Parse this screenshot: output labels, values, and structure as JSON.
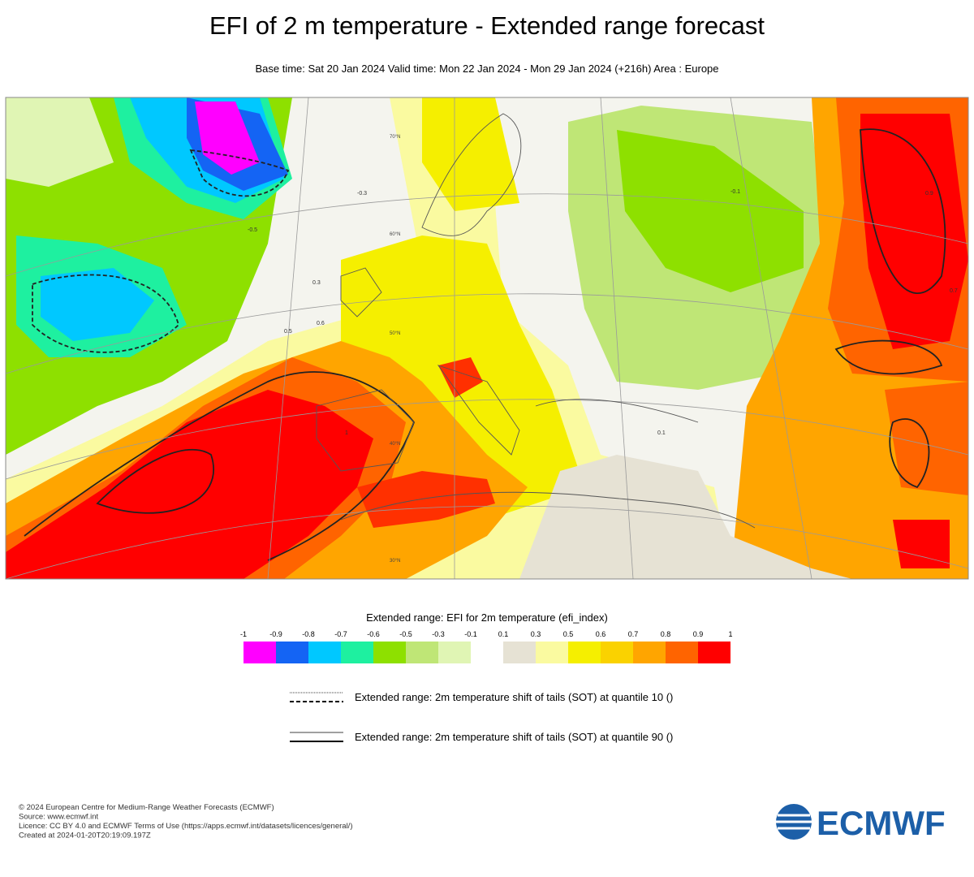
{
  "header": {
    "title": "EFI of 2 m temperature - Extended range forecast",
    "subtitle": "Base time: Sat 20 Jan 2024 Valid time: Mon 22 Jan 2024 - Mon 29 Jan 2024 (+216h) Area : Europe"
  },
  "map": {
    "latitude_labels": [
      "70°N",
      "60°N",
      "50°N",
      "40°N",
      "30°N"
    ],
    "contour_labels": [
      "0.5",
      "0.3",
      "0.1",
      "-0.1",
      "-0.3",
      "-0.5",
      "0.6",
      "0.7",
      "0.9",
      "1"
    ]
  },
  "colorbar": {
    "title": "Extended range: EFI for 2m temperature (efi_index)",
    "ticks": [
      -1,
      -0.9,
      -0.8,
      -0.7,
      -0.6,
      -0.5,
      -0.3,
      -0.1,
      0.1,
      0.3,
      0.5,
      0.6,
      0.7,
      0.8,
      0.9,
      1
    ],
    "colors": [
      "#ff00ff",
      "#1464f4",
      "#00c8ff",
      "#1ef0a0",
      "#8ee000",
      "#bfe676",
      "#e0f5b4",
      "#ffffff",
      "#e6e2d4",
      "#fafaa0",
      "#f5ef00",
      "#fad200",
      "#ffa500",
      "#ff6400",
      "#ff0000"
    ]
  },
  "legend": {
    "items": [
      {
        "label": "Extended range: 2m temperature shift of tails (SOT) at quantile 10 ()"
      },
      {
        "label": "Extended range: 2m temperature shift of tails (SOT) at quantile 90 ()"
      }
    ]
  },
  "footer": {
    "lines": [
      "© 2024 European Centre for Medium-Range Weather Forecasts (ECMWF)",
      "Source: www.ecmwf.int",
      "Licence: CC BY 4.0 and ECMWF Terms of Use (https://apps.ecmwf.int/datasets/licences/general/)",
      "Created at 2024-01-20T20:19:09.197Z"
    ],
    "logo": "ECMWF"
  }
}
